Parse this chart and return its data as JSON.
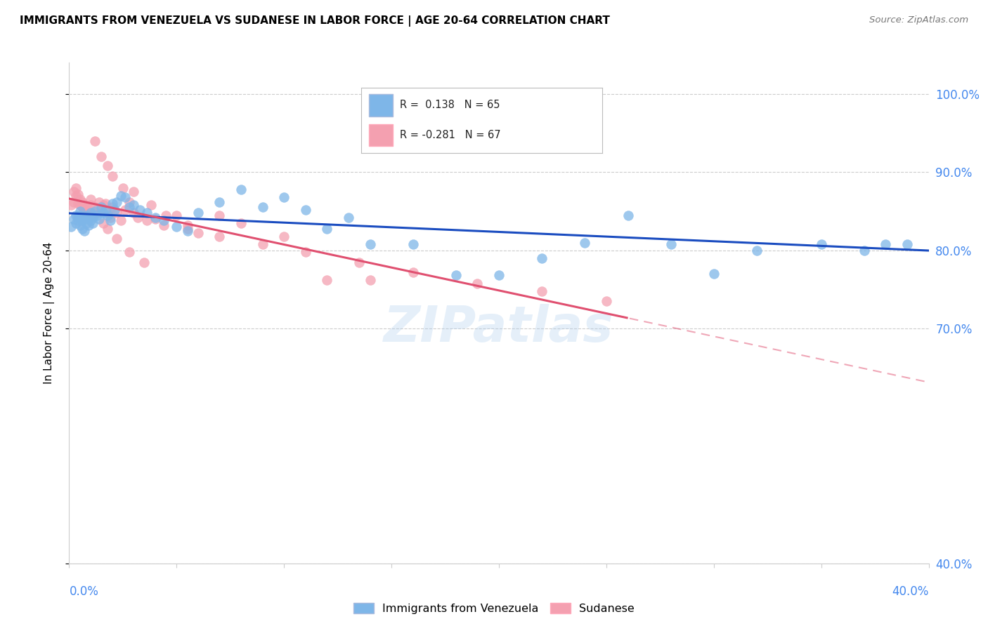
{
  "title": "IMMIGRANTS FROM VENEZUELA VS SUDANESE IN LABOR FORCE | AGE 20-64 CORRELATION CHART",
  "source": "Source: ZipAtlas.com",
  "ylabel": "In Labor Force | Age 20-64",
  "ylabel_ticks": [
    "100.0%",
    "90.0%",
    "80.0%",
    "70.0%",
    "40.0%"
  ],
  "ylabel_values": [
    1.0,
    0.9,
    0.8,
    0.7,
    0.4
  ],
  "xrange": [
    0.0,
    0.4
  ],
  "yrange": [
    0.55,
    1.04
  ],
  "color_blue": "#7EB6E8",
  "color_pink": "#F4A0B0",
  "color_line_blue": "#1A4CC0",
  "color_line_pink": "#E05070",
  "watermark": "ZIPatlas",
  "venezuela_x": [
    0.001,
    0.002,
    0.003,
    0.003,
    0.004,
    0.004,
    0.005,
    0.005,
    0.005,
    0.006,
    0.006,
    0.007,
    0.007,
    0.008,
    0.008,
    0.009,
    0.009,
    0.01,
    0.01,
    0.011,
    0.011,
    0.012,
    0.013,
    0.014,
    0.015,
    0.016,
    0.017,
    0.018,
    0.019,
    0.02,
    0.021,
    0.022,
    0.024,
    0.026,
    0.028,
    0.03,
    0.033,
    0.036,
    0.04,
    0.044,
    0.05,
    0.055,
    0.06,
    0.07,
    0.08,
    0.09,
    0.1,
    0.11,
    0.12,
    0.13,
    0.14,
    0.16,
    0.18,
    0.2,
    0.22,
    0.24,
    0.26,
    0.28,
    0.3,
    0.32,
    0.35,
    0.37,
    0.38,
    0.39,
    0.2
  ],
  "venezuela_y": [
    0.83,
    0.84,
    0.835,
    0.845,
    0.838,
    0.842,
    0.832,
    0.845,
    0.85,
    0.828,
    0.838,
    0.825,
    0.84,
    0.835,
    0.845,
    0.84,
    0.832,
    0.848,
    0.838,
    0.842,
    0.835,
    0.85,
    0.845,
    0.84,
    0.855,
    0.848,
    0.852,
    0.845,
    0.838,
    0.86,
    0.852,
    0.862,
    0.87,
    0.868,
    0.855,
    0.858,
    0.852,
    0.848,
    0.842,
    0.838,
    0.83,
    0.825,
    0.848,
    0.862,
    0.878,
    0.855,
    0.868,
    0.852,
    0.828,
    0.842,
    0.808,
    0.808,
    0.768,
    0.768,
    0.79,
    0.81,
    0.845,
    0.808,
    0.77,
    0.8,
    0.808,
    0.8,
    0.808,
    0.808,
    0.968
  ],
  "sudanese_x": [
    0.001,
    0.002,
    0.002,
    0.003,
    0.003,
    0.004,
    0.004,
    0.005,
    0.005,
    0.006,
    0.006,
    0.007,
    0.007,
    0.008,
    0.008,
    0.009,
    0.01,
    0.01,
    0.011,
    0.012,
    0.013,
    0.014,
    0.015,
    0.016,
    0.017,
    0.018,
    0.019,
    0.02,
    0.022,
    0.024,
    0.026,
    0.028,
    0.03,
    0.032,
    0.036,
    0.04,
    0.044,
    0.05,
    0.055,
    0.06,
    0.07,
    0.08,
    0.1,
    0.12,
    0.14,
    0.012,
    0.015,
    0.018,
    0.02,
    0.025,
    0.03,
    0.038,
    0.045,
    0.055,
    0.07,
    0.09,
    0.11,
    0.135,
    0.16,
    0.19,
    0.22,
    0.25,
    0.016,
    0.018,
    0.022,
    0.028,
    0.035
  ],
  "sudanese_y": [
    0.858,
    0.862,
    0.875,
    0.87,
    0.88,
    0.86,
    0.872,
    0.865,
    0.858,
    0.855,
    0.862,
    0.852,
    0.858,
    0.848,
    0.855,
    0.85,
    0.858,
    0.865,
    0.845,
    0.855,
    0.848,
    0.862,
    0.852,
    0.858,
    0.86,
    0.848,
    0.842,
    0.855,
    0.848,
    0.838,
    0.852,
    0.862,
    0.848,
    0.842,
    0.838,
    0.84,
    0.832,
    0.845,
    0.828,
    0.822,
    0.845,
    0.835,
    0.818,
    0.762,
    0.762,
    0.94,
    0.92,
    0.908,
    0.895,
    0.88,
    0.875,
    0.858,
    0.845,
    0.832,
    0.818,
    0.808,
    0.798,
    0.785,
    0.772,
    0.758,
    0.748,
    0.735,
    0.835,
    0.828,
    0.815,
    0.798,
    0.785
  ]
}
